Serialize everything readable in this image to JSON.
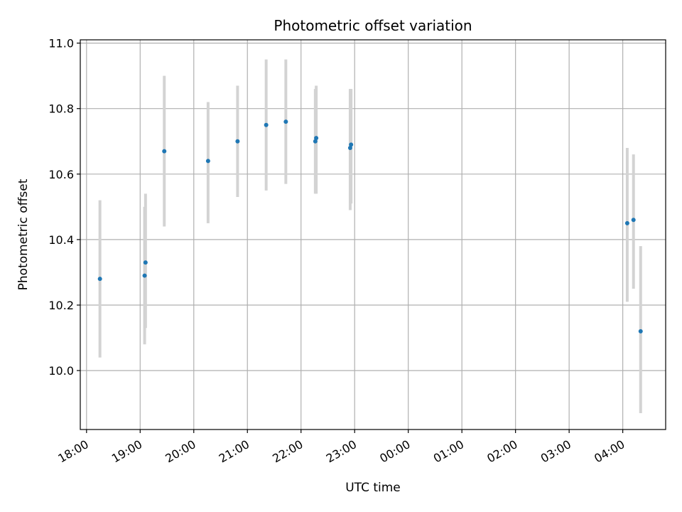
{
  "chart_data": {
    "type": "scatter",
    "title": "Photometric offset variation",
    "xlabel": "UTC time",
    "ylabel": "Photometric offset",
    "grid": true,
    "x_axis_kind": "time",
    "xlim": [
      "2000-01-01T17:53",
      "2000-01-02T04:48"
    ],
    "ylim": [
      9.82,
      11.01
    ],
    "xticks": [
      {
        "t": "2000-01-01T18:00",
        "label": "18:00"
      },
      {
        "t": "2000-01-01T19:00",
        "label": "19:00"
      },
      {
        "t": "2000-01-01T20:00",
        "label": "20:00"
      },
      {
        "t": "2000-01-01T21:00",
        "label": "21:00"
      },
      {
        "t": "2000-01-01T22:00",
        "label": "22:00"
      },
      {
        "t": "2000-01-01T23:00",
        "label": "23:00"
      },
      {
        "t": "2000-01-02T00:00",
        "label": "00:00"
      },
      {
        "t": "2000-01-02T01:00",
        "label": "01:00"
      },
      {
        "t": "2000-01-02T02:00",
        "label": "02:00"
      },
      {
        "t": "2000-01-02T03:00",
        "label": "03:00"
      },
      {
        "t": "2000-01-02T04:00",
        "label": "04:00"
      }
    ],
    "yticks": [
      {
        "v": 10.0,
        "label": "10.0"
      },
      {
        "v": 10.2,
        "label": "10.2"
      },
      {
        "v": 10.4,
        "label": "10.4"
      },
      {
        "v": 10.6,
        "label": "10.6"
      },
      {
        "v": 10.8,
        "label": "10.8"
      },
      {
        "v": 11.0,
        "label": "11.0"
      }
    ],
    "point_color": "#1f77b4",
    "errorbar_color": "#d3d3d3",
    "points": [
      {
        "t": "2000-01-01T18:15",
        "y": 10.28,
        "ylo": 10.04,
        "yhi": 10.52
      },
      {
        "t": "2000-01-01T19:05",
        "y": 10.29,
        "ylo": 10.08,
        "yhi": 10.5
      },
      {
        "t": "2000-01-01T19:06",
        "y": 10.33,
        "ylo": 10.13,
        "yhi": 10.54
      },
      {
        "t": "2000-01-01T19:27",
        "y": 10.67,
        "ylo": 10.44,
        "yhi": 10.9
      },
      {
        "t": "2000-01-01T20:16",
        "y": 10.64,
        "ylo": 10.45,
        "yhi": 10.82
      },
      {
        "t": "2000-01-01T20:49",
        "y": 10.7,
        "ylo": 10.53,
        "yhi": 10.87
      },
      {
        "t": "2000-01-01T21:21",
        "y": 10.75,
        "ylo": 10.55,
        "yhi": 10.95
      },
      {
        "t": "2000-01-01T21:43",
        "y": 10.76,
        "ylo": 10.57,
        "yhi": 10.95
      },
      {
        "t": "2000-01-01T22:16",
        "y": 10.7,
        "ylo": 10.54,
        "yhi": 10.86
      },
      {
        "t": "2000-01-01T22:17",
        "y": 10.71,
        "ylo": 10.54,
        "yhi": 10.87
      },
      {
        "t": "2000-01-01T22:55",
        "y": 10.68,
        "ylo": 10.49,
        "yhi": 10.86
      },
      {
        "t": "2000-01-01T22:56",
        "y": 10.69,
        "ylo": 10.51,
        "yhi": 10.86
      },
      {
        "t": "2000-01-02T04:05",
        "y": 10.45,
        "ylo": 10.21,
        "yhi": 10.68
      },
      {
        "t": "2000-01-02T04:12",
        "y": 10.46,
        "ylo": 10.25,
        "yhi": 10.66
      },
      {
        "t": "2000-01-02T04:20",
        "y": 10.12,
        "ylo": 9.87,
        "yhi": 10.38
      }
    ]
  }
}
